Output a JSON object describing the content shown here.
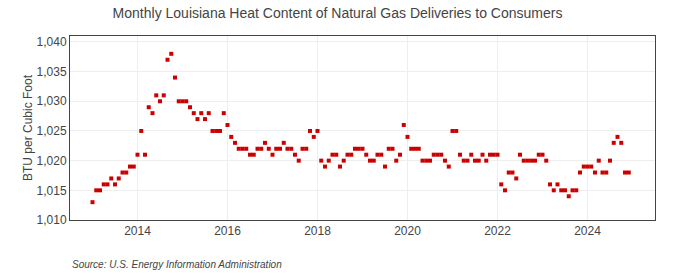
{
  "chart_data": {
    "type": "scatter",
    "title": "Monthly Louisiana Heat Content of Natural Gas Deliveries to Consumers",
    "y_label": "BTU per Cubic Foot",
    "annotations": [
      "Source: U.S. Energy Information Administration"
    ],
    "color": "#CC0000",
    "marker": "square",
    "grid": true,
    "xlim": [
      2012.5,
      2025.5
    ],
    "xticks": [
      2014,
      2016,
      2018,
      2020,
      2022,
      2024
    ],
    "ylim": [
      1010,
      1041
    ],
    "yticks": [
      {
        "value": 1010,
        "label": "1,010"
      },
      {
        "value": 1015,
        "label": "1,015"
      },
      {
        "value": 1020,
        "label": "1,020"
      },
      {
        "value": 1025,
        "label": "1,025"
      },
      {
        "value": 1030,
        "label": "1,030"
      },
      {
        "value": 1035,
        "label": "1,035"
      },
      {
        "value": 1040,
        "label": "1,040"
      }
    ],
    "x": [
      2013.0,
      2013.083,
      2013.167,
      2013.25,
      2013.333,
      2013.417,
      2013.5,
      2013.583,
      2013.667,
      2013.75,
      2013.833,
      2013.917,
      2014.0,
      2014.083,
      2014.167,
      2014.25,
      2014.333,
      2014.417,
      2014.5,
      2014.583,
      2014.667,
      2014.75,
      2014.833,
      2014.917,
      2015.0,
      2015.083,
      2015.167,
      2015.25,
      2015.333,
      2015.417,
      2015.5,
      2015.583,
      2015.667,
      2015.75,
      2015.833,
      2015.917,
      2016.0,
      2016.083,
      2016.167,
      2016.25,
      2016.333,
      2016.417,
      2016.5,
      2016.583,
      2016.667,
      2016.75,
      2016.833,
      2016.917,
      2017.0,
      2017.083,
      2017.167,
      2017.25,
      2017.333,
      2017.417,
      2017.5,
      2017.583,
      2017.667,
      2017.75,
      2017.833,
      2017.917,
      2018.0,
      2018.083,
      2018.167,
      2018.25,
      2018.333,
      2018.417,
      2018.5,
      2018.583,
      2018.667,
      2018.75,
      2018.833,
      2018.917,
      2019.0,
      2019.083,
      2019.167,
      2019.25,
      2019.333,
      2019.417,
      2019.5,
      2019.583,
      2019.667,
      2019.75,
      2019.833,
      2019.917,
      2020.0,
      2020.083,
      2020.167,
      2020.25,
      2020.333,
      2020.417,
      2020.5,
      2020.583,
      2020.667,
      2020.75,
      2020.833,
      2020.917,
      2021.0,
      2021.083,
      2021.167,
      2021.25,
      2021.333,
      2021.417,
      2021.5,
      2021.583,
      2021.667,
      2021.75,
      2021.833,
      2021.917,
      2022.0,
      2022.083,
      2022.167,
      2022.25,
      2022.333,
      2022.417,
      2022.5,
      2022.583,
      2022.667,
      2022.75,
      2022.833,
      2022.917,
      2023.0,
      2023.083,
      2023.167,
      2023.25,
      2023.333,
      2023.417,
      2023.5,
      2023.583,
      2023.667,
      2023.75,
      2023.833,
      2023.917,
      2024.0,
      2024.083,
      2024.167,
      2024.25,
      2024.333,
      2024.417,
      2024.5,
      2024.583,
      2024.667,
      2024.75,
      2024.833,
      2024.917
    ],
    "values": [
      1013,
      1015,
      1015,
      1016,
      1016,
      1017,
      1016,
      1017,
      1018,
      1018,
      1019,
      1019,
      1021,
      1025,
      1021,
      1029,
      1028,
      1031,
      1030,
      1031,
      1037,
      1038,
      1034,
      1030,
      1030,
      1030,
      1029,
      1028,
      1027,
      1028,
      1027,
      1028,
      1025,
      1025,
      1025,
      1028,
      1026,
      1024,
      1023,
      1022,
      1022,
      1022,
      1021,
      1021,
      1022,
      1022,
      1023,
      1022,
      1021,
      1022,
      1022,
      1023,
      1022,
      1022,
      1021,
      1020,
      1022,
      1022,
      1025,
      1024,
      1025,
      1020,
      1019,
      1020,
      1021,
      1021,
      1019,
      1020,
      1021,
      1021,
      1022,
      1022,
      1022,
      1021,
      1020,
      1020,
      1021,
      1021,
      1019,
      1022,
      1022,
      1020,
      1021,
      1026,
      1024,
      1022,
      1022,
      1022,
      1020,
      1020,
      1020,
      1021,
      1021,
      1021,
      1020,
      1019,
      1025,
      1025,
      1021,
      1020,
      1020,
      1021,
      1020,
      1020,
      1021,
      1020,
      1021,
      1021,
      1021,
      1016,
      1015,
      1018,
      1018,
      1017,
      1021,
      1020,
      1020,
      1020,
      1020,
      1021,
      1021,
      1020,
      1016,
      1015,
      1016,
      1015,
      1015,
      1014,
      1015,
      1015,
      1018,
      1019,
      1019,
      1019,
      1018,
      1020,
      1018,
      1018,
      1020,
      1023,
      1024,
      1023,
      1018,
      1018
    ]
  }
}
